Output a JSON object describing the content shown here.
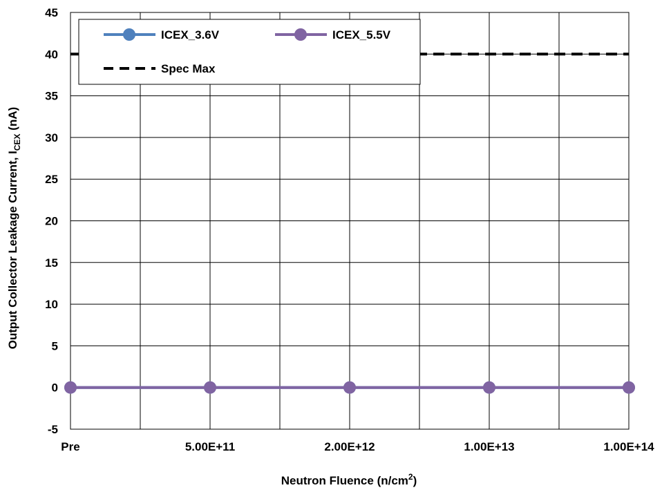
{
  "chart_data": {
    "type": "line",
    "categories": [
      "Pre",
      "",
      "5.00E+11",
      "",
      "2.00E+12",
      "",
      "1.00E+13",
      "",
      "1.00E+14"
    ],
    "xlabel": "Neutron Fluence (n/cm",
    "xlabel_sup": "2",
    "xlabel_end": ")",
    "ylabel": "Output Collector Leakage Current, I",
    "ylabel_sub": "CEX",
    "ylabel_end": " (nA)",
    "ylim": [
      -5,
      45
    ],
    "yticks": [
      "-5",
      "0",
      "5",
      "10",
      "15",
      "20",
      "25",
      "30",
      "35",
      "40",
      "45"
    ],
    "grid": true,
    "legend_position": "top-left",
    "series": [
      {
        "name": "ICEX_3.6V",
        "color": "#4f81bd",
        "marker": "circle",
        "x": [
          "Pre",
          "5.00E+11",
          "2.00E+12",
          "1.00E+13",
          "1.00E+14"
        ],
        "values": [
          0,
          0,
          0,
          0,
          0
        ]
      },
      {
        "name": "ICEX_5.5V",
        "color": "#8064a2",
        "marker": "circle",
        "x": [
          "Pre",
          "5.00E+11",
          "2.00E+12",
          "1.00E+13",
          "1.00E+14"
        ],
        "values": [
          0,
          0,
          0,
          0,
          0
        ]
      }
    ],
    "reference_line": {
      "name": "Spec Max",
      "value": 40,
      "color": "#000000",
      "style": "dashed"
    }
  }
}
